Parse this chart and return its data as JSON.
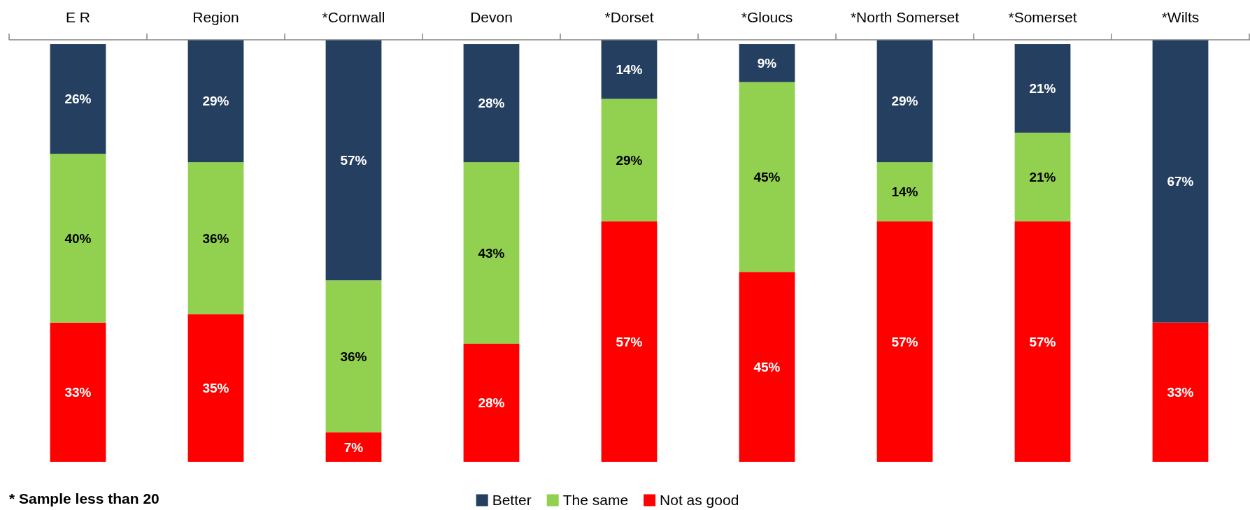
{
  "chart_data": {
    "type": "bar",
    "stacked": true,
    "categories": [
      "E R",
      "Region",
      "*Cornwall",
      "Devon",
      "*Dorset",
      "*Gloucs",
      "*North Somerset",
      "*Somerset",
      "*Wilts"
    ],
    "series": [
      {
        "name": "Not as good",
        "color": "#ff0000",
        "values": [
          33,
          35,
          7,
          28,
          57,
          45,
          57,
          57,
          33
        ],
        "value_labels": [
          "33%",
          "35%",
          "7%",
          "28%",
          "57%",
          "45%",
          "57%",
          "57%",
          "33%"
        ]
      },
      {
        "name": "The same",
        "color": "#92d050",
        "values": [
          40,
          36,
          36,
          43,
          29,
          45,
          14,
          21,
          null
        ],
        "value_labels": [
          "40%",
          "36%",
          "36%",
          "43%",
          "29%",
          "45%",
          "14%",
          "21%",
          null
        ]
      },
      {
        "name": "Better",
        "color": "#243f60",
        "values": [
          26,
          29,
          57,
          28,
          14,
          9,
          29,
          21,
          67
        ],
        "value_labels": [
          "26%",
          "29%",
          "57%",
          "28%",
          "14%",
          "9%",
          "29%",
          "21%",
          "67%"
        ]
      }
    ],
    "ylim": [
      0,
      100
    ],
    "tick_labels": "x",
    "legend": "bottom",
    "annotations": [
      "* Sample less than 20"
    ]
  }
}
